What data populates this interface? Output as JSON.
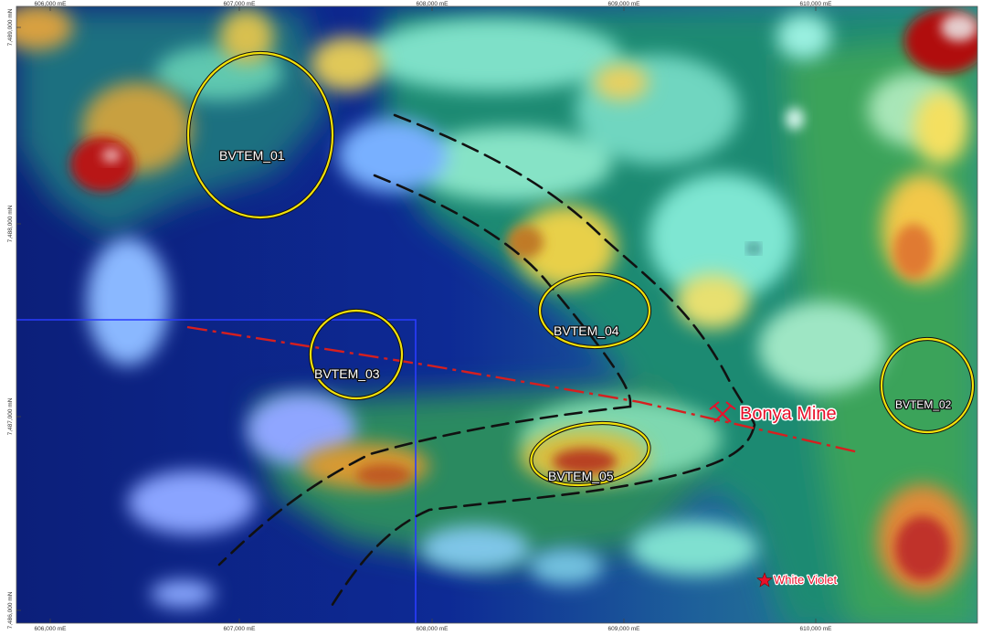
{
  "map": {
    "grid": {
      "easting_labels": [
        "606,000 mE",
        "607,000 mE",
        "608,000 mE",
        "609,000 mE",
        "610,000 mE"
      ],
      "northing_labels": [
        "7,489,000 mN",
        "7,488,000 mN",
        "7,487,000 mN",
        "7,486,000 mN"
      ]
    },
    "anomalies": [
      {
        "id": "BVTEM_01",
        "label": "BVTEM_01"
      },
      {
        "id": "BVTEM_02",
        "label": "BVTEM_02"
      },
      {
        "id": "BVTEM_03",
        "label": "BVTEM_03"
      },
      {
        "id": "BVTEM_04",
        "label": "BVTEM_04"
      },
      {
        "id": "BVTEM_05",
        "label": "BVTEM_05"
      }
    ],
    "features": {
      "mine_label": "Bonya Mine",
      "mine_icon": "crossed-picks-icon",
      "prospect_label": "White Violet",
      "prospect_icon": "star-icon"
    },
    "colors": {
      "anomaly_outline": "#f2e10a",
      "mine_text": "#e8102a",
      "section_line": "#d61f1f",
      "structure_line": "#111111",
      "tenement_boundary": "#2a3cff",
      "background_low": "#0a1f8a",
      "background_high": "#c41414"
    }
  }
}
